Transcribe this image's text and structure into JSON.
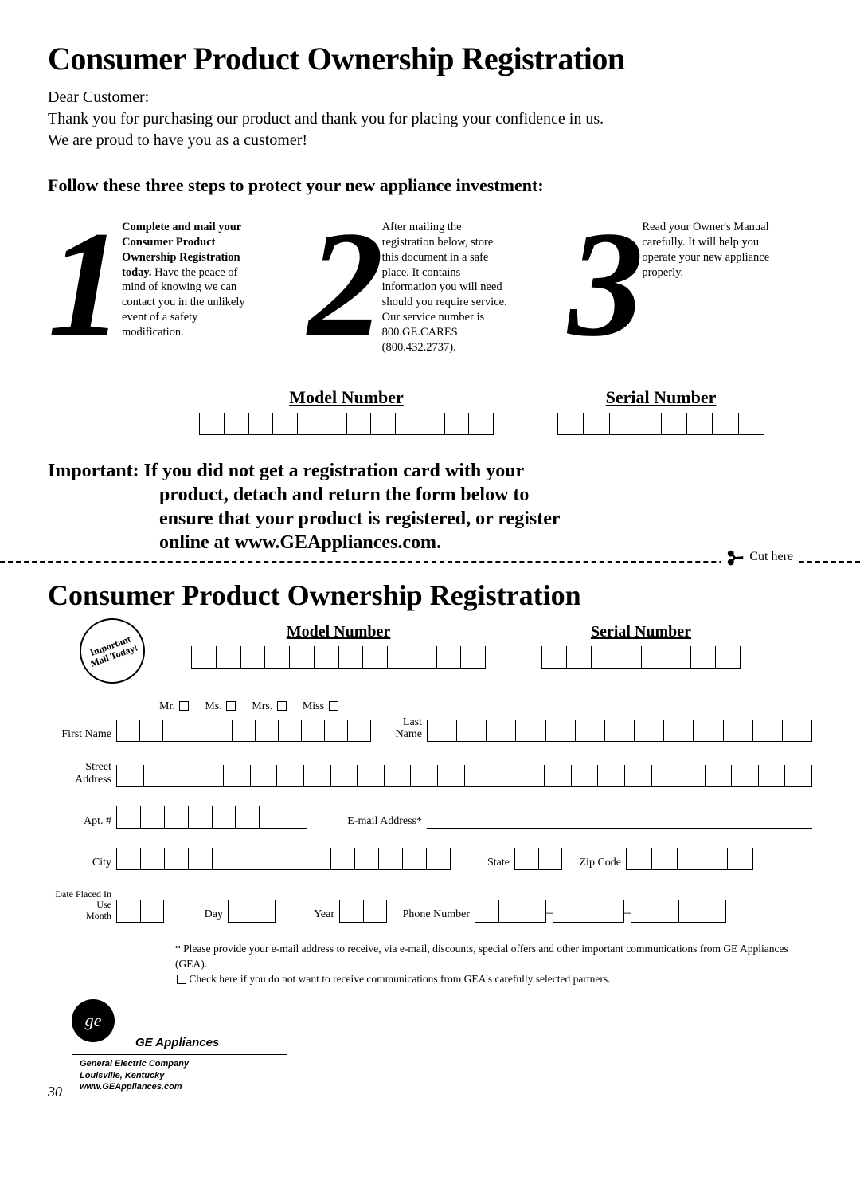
{
  "title": "Consumer Product Ownership Registration",
  "salutation": "Dear Customer:",
  "intro_line1": "Thank you for purchasing our product and thank you for placing your confidence in us.",
  "intro_line2": "We are proud to have you as a customer!",
  "steps_heading": "Follow these three steps to protect your new appliance investment:",
  "steps": {
    "one_num": "1",
    "one_bold": "Complete and mail your Consumer Product Ownership Registration today.",
    "one_rest": " Have the peace of mind of knowing we can contact you in the unlikely event of a safety modification.",
    "two_num": "2",
    "two_text": "After mailing the registration below, store this document in a safe place. It contains information you will need should you require service. Our service number is 800.GE.CARES (800.432.2737).",
    "three_num": "3",
    "three_text": "Read your Owner's Manual carefully. It will help you operate your new appliance properly."
  },
  "model_number_label": "Model Number",
  "serial_number_label": "Serial Number",
  "model_boxes": 12,
  "serial_boxes": 8,
  "important": {
    "lead": "Important:",
    "l1": " If you did not get a registration card with your",
    "l2": "product, detach and return the form below to",
    "l3": "ensure that your product is registered, or register",
    "l4": "online at www.GEAppliances.com."
  },
  "cut_here": "Cut here",
  "form_title": "Consumer Product Ownership Registration",
  "stamp": "Important Mail Today!",
  "form": {
    "model_boxes": 12,
    "serial_boxes": 8,
    "titles": {
      "mr": "Mr.",
      "ms": "Ms.",
      "mrs": "Mrs.",
      "miss": "Miss"
    },
    "first_name": "First Name",
    "last_name": "Last Name",
    "first_boxes": 11,
    "last_boxes": 13,
    "street": "Street Address",
    "street_boxes": 26,
    "apt": "Apt. #",
    "apt_boxes": 8,
    "email": "E-mail Address*",
    "city": "City",
    "city_boxes": 14,
    "state": "State",
    "state_boxes": 2,
    "zip": "Zip Code",
    "zip_boxes": 5,
    "date": "Date Placed In Use",
    "month": "Month",
    "month_boxes": 2,
    "day": "Day",
    "day_boxes": 2,
    "year": "Year",
    "year_boxes": 2,
    "phone": "Phone Number",
    "phone_a": 3,
    "phone_b": 3,
    "phone_c": 4
  },
  "footnote1": "* Please provide your e-mail address to receive, via e-mail, discounts, special offers and other important communications from GE Appliances (GEA).",
  "footnote2": "Check here if you do not want to receive communications from GEA's carefully selected partners.",
  "ge_appliances": "GE Appliances",
  "company1": "General Electric Company",
  "company2": "Louisville, Kentucky",
  "company3": "www.GEAppliances.com",
  "page_number": "30",
  "colors": {
    "text": "#000000",
    "bg": "#ffffff"
  }
}
